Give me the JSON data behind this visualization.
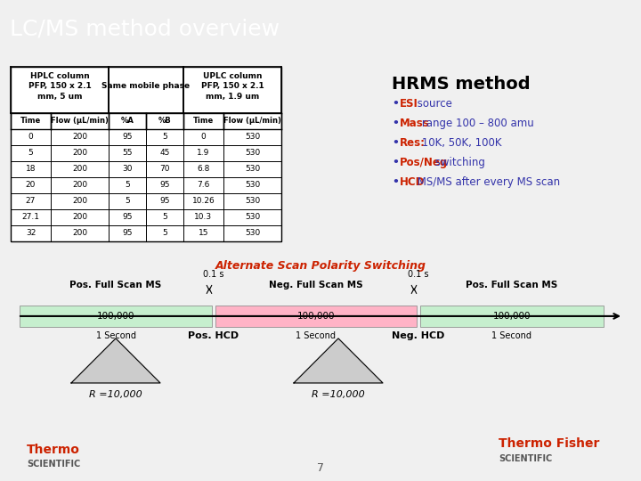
{
  "title": "LC/MS method overview",
  "title_bg": "#1a1a2e",
  "title_color": "#ffffff",
  "bg_color": "#ffffff",
  "slide_bg": "#f0f0f0",
  "table_col_headers": [
    "Time",
    "Flow (μL/min)",
    "%A",
    "%B",
    "Time",
    "Flow (μL/min)"
  ],
  "table_data": [
    [
      "0",
      "200",
      "95",
      "5",
      "0",
      "530"
    ],
    [
      "5",
      "200",
      "55",
      "45",
      "1.9",
      "530"
    ],
    [
      "18",
      "200",
      "30",
      "70",
      "6.8",
      "530"
    ],
    [
      "20",
      "200",
      "5",
      "95",
      "7.6",
      "530"
    ],
    [
      "27",
      "200",
      "5",
      "95",
      "10.26",
      "530"
    ],
    [
      "27.1",
      "200",
      "95",
      "5",
      "10.3",
      "530"
    ],
    [
      "32",
      "200",
      "95",
      "5",
      "15",
      "530"
    ]
  ],
  "hrms_title": "HRMS method",
  "hrms_bullets": [
    "•ESI source",
    "•Mass range 100 – 800 amu",
    "•Res: 10K, 50K, 100K",
    "•Pos/Neg switching",
    "•HCD MS/MS after every MS scan"
  ],
  "hrms_title_color": "#000000",
  "hrms_bullet_color": "#3333aa",
  "hrms_bold_color": "#cc2200",
  "scan_title": "Alternate Scan Polarity Switching",
  "scan_title_color": "#cc2200",
  "pos_label": "Pos. Full Scan MS",
  "neg_label": "Neg. Full Scan MS",
  "pos_label2": "Pos. Full Scan MS",
  "time_label": "0.1 s",
  "green_color": "#c6efce",
  "pink_color": "#ffb3c6",
  "count_label": "100,000",
  "pos_hcd": "Pos. HCD",
  "neg_hcd": "Neg. HCD",
  "one_second": "1 Second",
  "resolution_label": "R =10,000",
  "footer_page": "7",
  "footer_color": "#555555",
  "thermo_color": "#cc2200",
  "scientific_color": "#555555"
}
